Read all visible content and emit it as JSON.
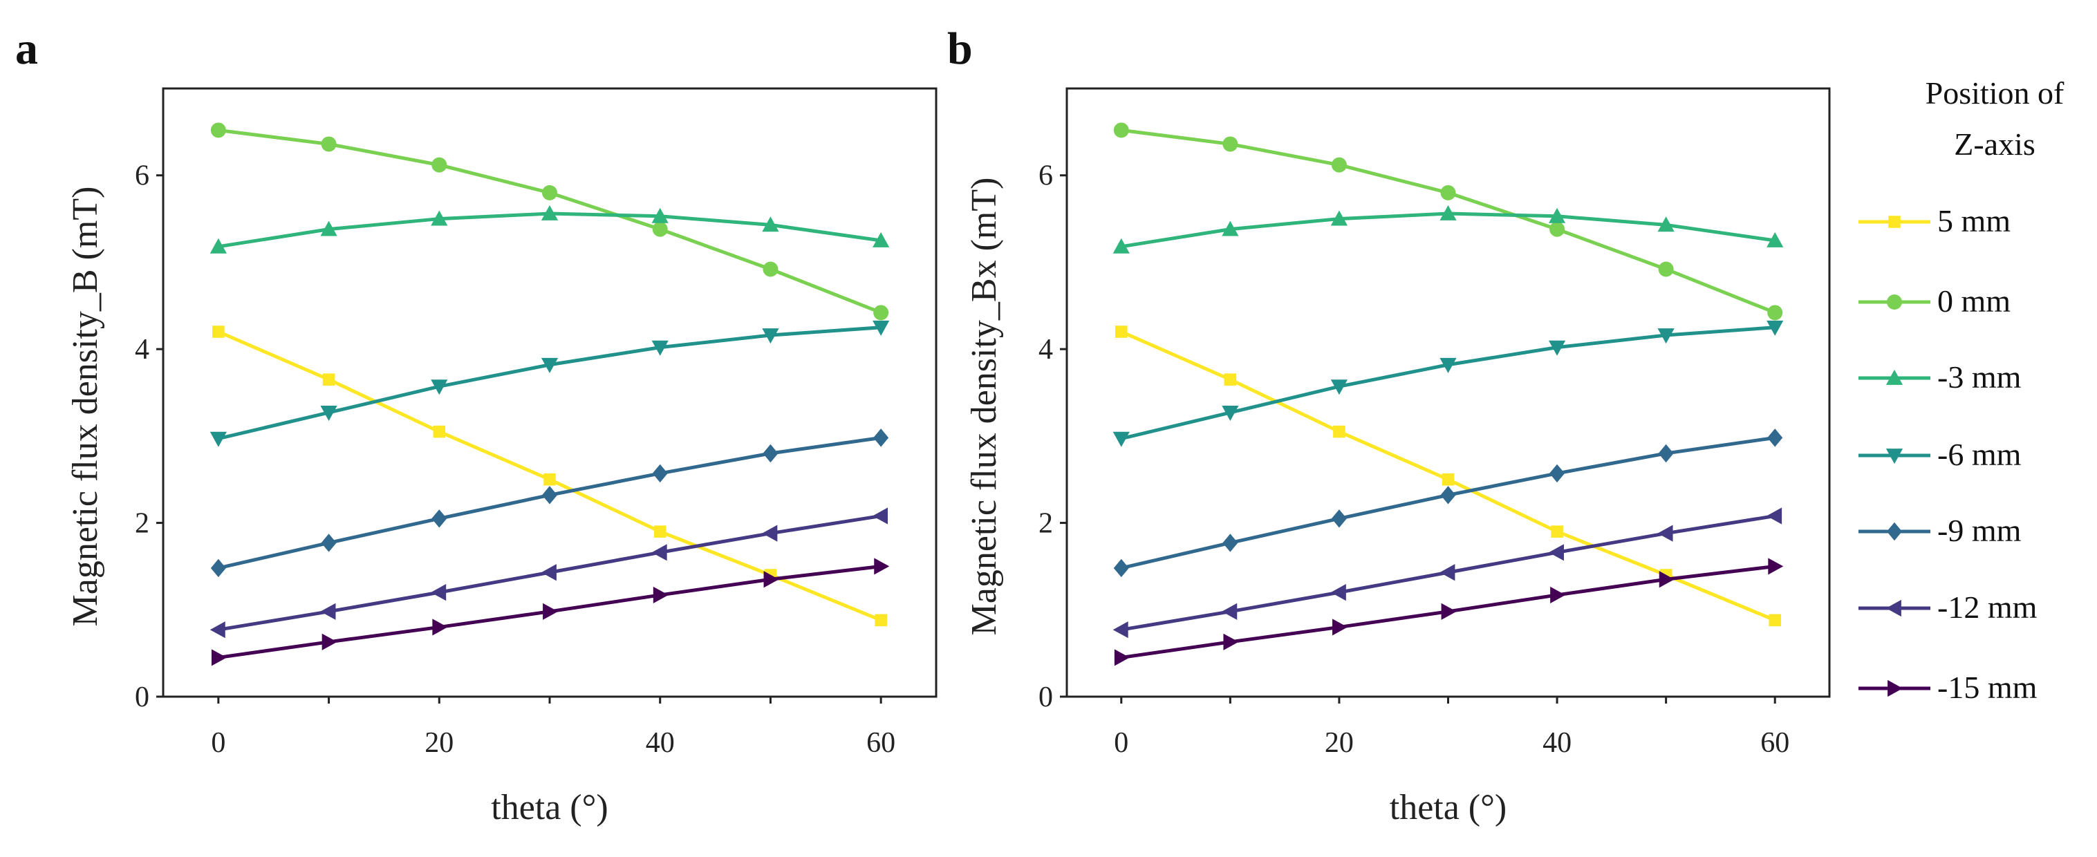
{
  "chart_data": [
    {
      "panel": "a",
      "type": "line",
      "xlabel": "theta (°)",
      "ylabel": "Magnetic flux density_B (mT)",
      "xlim": [
        -5,
        65
      ],
      "ylim": [
        0,
        7
      ],
      "xticks": [
        0,
        20,
        40,
        60
      ],
      "yticks": [
        0,
        2,
        4,
        6
      ],
      "grid": false
    },
    {
      "panel": "b",
      "type": "line",
      "xlabel": "theta (°)",
      "ylabel": "Magnetic flux density_Bx (mT)",
      "xlim": [
        -5,
        65
      ],
      "ylim": [
        0,
        7
      ],
      "xticks": [
        0,
        20,
        40,
        60
      ],
      "yticks": [
        0,
        2,
        4,
        6
      ],
      "grid": false
    }
  ],
  "shared": {
    "x": [
      0,
      10,
      20,
      30,
      40,
      50,
      60
    ],
    "legend_title": [
      "Position of",
      "Z-axis"
    ],
    "legend_placement": "right, outside",
    "series": [
      {
        "name": "5 mm",
        "color": "#fde725",
        "marker": "square",
        "values": [
          4.2,
          3.65,
          3.05,
          2.5,
          1.9,
          1.4,
          0.88
        ]
      },
      {
        "name": "0 mm",
        "color": "#7ad151",
        "marker": "circle",
        "values": [
          6.52,
          6.36,
          6.12,
          5.8,
          5.38,
          4.92,
          4.42
        ]
      },
      {
        "name": "-3 mm",
        "color": "#2fb47c",
        "marker": "triangle-up",
        "values": [
          5.18,
          5.38,
          5.5,
          5.56,
          5.53,
          5.43,
          5.25
        ]
      },
      {
        "name": "-6 mm",
        "color": "#21918c",
        "marker": "triangle-down",
        "values": [
          2.97,
          3.27,
          3.57,
          3.82,
          4.02,
          4.16,
          4.25
        ]
      },
      {
        "name": "-9 mm",
        "color": "#31688e",
        "marker": "diamond",
        "values": [
          1.48,
          1.77,
          2.05,
          2.32,
          2.57,
          2.8,
          2.98
        ]
      },
      {
        "name": "-12 mm",
        "color": "#443983",
        "marker": "triangle-left",
        "values": [
          0.77,
          0.98,
          1.2,
          1.43,
          1.66,
          1.88,
          2.08
        ]
      },
      {
        "name": "-15 mm",
        "color": "#440154",
        "marker": "triangle-right",
        "values": [
          0.45,
          0.63,
          0.8,
          0.98,
          1.17,
          1.35,
          1.5
        ]
      }
    ]
  }
}
